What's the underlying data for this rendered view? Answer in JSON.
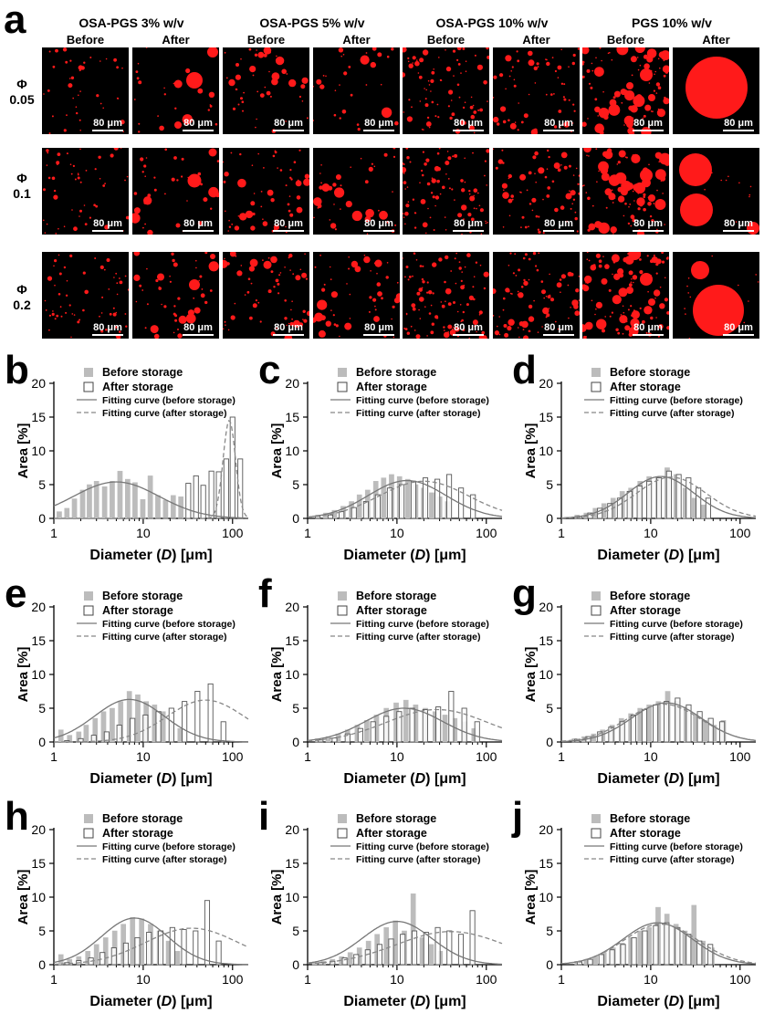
{
  "panel_a": {
    "label": "a",
    "groups": [
      "OSA-PGS 3% w/v",
      "OSA-PGS 5% w/v",
      "OSA-PGS 10% w/v",
      "PGS 10% w/v"
    ],
    "subheaders": [
      "Before",
      "After"
    ],
    "rows": [
      {
        "symbol": "Φ",
        "value": "0.05"
      },
      {
        "symbol": "Φ",
        "value": "0.1"
      },
      {
        "symbol": "Φ",
        "value": "0.2"
      }
    ],
    "scale_bar": "80 μm",
    "colors": {
      "droplet": "#ff1a1a",
      "background": "#000000"
    }
  },
  "histogram_text": {
    "legend": [
      "Before storage",
      "After storage",
      "Fitting curve (before storage)",
      "Fitting curve (after storage)"
    ],
    "xlabel_prefix": "Diameter (",
    "xlabel_var": "D",
    "xlabel_suffix": ") [μm]",
    "ylabel": "Area [%]",
    "yticks": [
      "0",
      "5",
      "10",
      "15",
      "20"
    ],
    "xticks": [
      "1",
      "10",
      "100"
    ]
  },
  "chart_data": [
    {
      "panel": "b",
      "type": "bar",
      "xscale": "log",
      "xlim": [
        1,
        150
      ],
      "ylim": [
        0,
        20
      ],
      "xlabel": "Diameter (D) [μm]",
      "ylabel": "Area [%]",
      "series": [
        {
          "name": "Before storage",
          "x": [
            1.15,
            1.4,
            1.7,
            2.1,
            2.5,
            3.0,
            3.7,
            4.5,
            5.5,
            6.7,
            8.1,
            9.9,
            12,
            14.6,
            17.8,
            21.7,
            26.4
          ],
          "values": [
            1.0,
            1.5,
            2.9,
            4.2,
            5.0,
            5.5,
            4.7,
            5.5,
            7.0,
            5.8,
            5.3,
            2.8,
            6.3,
            3.4,
            2.7,
            3.4,
            3.2
          ]
        },
        {
          "name": "After storage",
          "x": [
            32,
            39,
            47,
            58,
            70,
            85,
            100,
            122
          ],
          "values": [
            5.2,
            6.3,
            4.9,
            7.0,
            6.9,
            8.8,
            15.0,
            8.8
          ]
        }
      ],
      "fits": [
        {
          "name": "Fitting curve (before storage)",
          "peak_x": 5,
          "peak_y": 5.4,
          "sigma": 1.1
        },
        {
          "name": "Fitting curve (after storage)",
          "peak_x": 92,
          "peak_y": 14.5,
          "sigma": 0.16
        }
      ]
    },
    {
      "panel": "c",
      "type": "bar",
      "xscale": "log",
      "xlim": [
        1,
        150
      ],
      "ylim": [
        0,
        20
      ],
      "xlabel": "Diameter (D) [μm]",
      "ylabel": "Area [%]",
      "series": [
        {
          "name": "Before storage",
          "x": [
            1.3,
            1.6,
            2.0,
            2.5,
            3.1,
            3.8,
            4.7,
            5.8,
            7.1,
            8.7,
            10.7,
            13.2,
            16.2,
            19.9,
            24.5,
            30.1,
            37
          ],
          "values": [
            0.5,
            0.8,
            1.2,
            1.8,
            2.5,
            3.5,
            4.2,
            5.5,
            6.0,
            6.5,
            6.2,
            5.8,
            5.0,
            4.5,
            3.8,
            3.2,
            2.5
          ]
        },
        {
          "name": "After storage",
          "x": [
            1.3,
            1.8,
            2.4,
            3.3,
            4.5,
            6.1,
            8.3,
            11.3,
            15.3,
            20.8,
            28.3,
            38.4,
            52.2,
            71
          ],
          "values": [
            0.3,
            0.5,
            1.0,
            1.6,
            2.5,
            3.5,
            4.5,
            5.0,
            5.5,
            6.0,
            5.8,
            6.5,
            4.5,
            3.5
          ]
        }
      ],
      "fits": [
        {
          "name": "Fitting curve (before storage)",
          "peak_x": 13,
          "peak_y": 5.6,
          "sigma": 1.0
        },
        {
          "name": "Fitting curve (after storage)",
          "peak_x": 20,
          "peak_y": 5.5,
          "sigma": 1.15
        }
      ]
    },
    {
      "panel": "d",
      "type": "bar",
      "xscale": "log",
      "xlim": [
        1,
        150
      ],
      "ylim": [
        0,
        20
      ],
      "xlabel": "Diameter (D) [μm]",
      "ylabel": "Area [%]",
      "series": [
        {
          "name": "Before storage",
          "x": [
            1.5,
            1.9,
            2.4,
            3.0,
            3.8,
            4.8,
            6.0,
            7.6,
            9.6,
            12.1,
            15.3,
            19.3,
            24.4,
            30.8,
            38.9
          ],
          "values": [
            0.5,
            0.8,
            1.5,
            2.2,
            3.0,
            4.0,
            4.5,
            5.5,
            6.2,
            6.0,
            7.5,
            6.5,
            4.5,
            3.0,
            2.0
          ]
        },
        {
          "name": "After storage",
          "x": [
            1.6,
            2.1,
            2.7,
            3.5,
            4.5,
            5.8,
            7.5,
            9.6,
            12.4,
            16,
            20.6,
            26.5,
            34.2,
            44
          ],
          "values": [
            0.3,
            0.8,
            1.5,
            2.2,
            3.0,
            4.0,
            4.8,
            5.5,
            6.0,
            7.0,
            6.5,
            6.0,
            4.5,
            3.0
          ]
        }
      ],
      "fits": [
        {
          "name": "Fitting curve (before storage)",
          "peak_x": 13,
          "peak_y": 6.2,
          "sigma": 0.85
        },
        {
          "name": "Fitting curve (after storage)",
          "peak_x": 17,
          "peak_y": 6.1,
          "sigma": 0.9
        }
      ]
    },
    {
      "panel": "e",
      "type": "bar",
      "xscale": "log",
      "xlim": [
        1,
        150
      ],
      "ylim": [
        0,
        20
      ],
      "xlabel": "Diameter (D) [μm]",
      "ylabel": "Area [%]",
      "series": [
        {
          "name": "Before storage",
          "x": [
            1.2,
            1.5,
            1.9,
            2.3,
            2.9,
            3.6,
            4.5,
            5.6,
            7.0,
            8.7,
            10.8,
            13.4,
            16.7,
            20.8,
            25.9
          ],
          "values": [
            1.8,
            1.0,
            1.5,
            2.5,
            3.5,
            4.5,
            5.0,
            6.0,
            7.5,
            7.0,
            6.0,
            5.5,
            4.5,
            3.0,
            2.0
          ]
        },
        {
          "name": "After storage",
          "x": [
            1.4,
            2.0,
            2.8,
            3.9,
            5.4,
            7.6,
            10.6,
            14.8,
            20.7,
            29,
            40.5,
            56.7,
            79
          ],
          "values": [
            0.2,
            0.5,
            1.0,
            1.5,
            2.5,
            3.5,
            4.0,
            4.5,
            5.0,
            6.0,
            7.5,
            8.6,
            3.0
          ]
        }
      ],
      "fits": [
        {
          "name": "Fitting curve (before storage)",
          "peak_x": 7,
          "peak_y": 6.3,
          "sigma": 0.9
        },
        {
          "name": "Fitting curve (after storage)",
          "peak_x": 50,
          "peak_y": 6.2,
          "sigma": 1.0
        }
      ]
    },
    {
      "panel": "f",
      "type": "bar",
      "xscale": "log",
      "xlim": [
        1,
        150
      ],
      "ylim": [
        0,
        20
      ],
      "xlabel": "Diameter (D) [μm]",
      "ylabel": "Area [%]",
      "series": [
        {
          "name": "Before storage",
          "x": [
            1.3,
            1.7,
            2.2,
            2.8,
            3.6,
            4.6,
            5.9,
            7.6,
            9.8,
            12.6,
            16.2,
            20.8,
            26.8,
            34.5,
            44.4,
            57,
            73
          ],
          "values": [
            0.5,
            0.8,
            1.2,
            1.8,
            2.5,
            3.2,
            4.0,
            5.0,
            5.8,
            6.2,
            5.5,
            5.0,
            4.5,
            4.0,
            3.5,
            3.0,
            2.0
          ]
        },
        {
          "name": "After storage",
          "x": [
            1.4,
            2.0,
            2.8,
            3.9,
            5.4,
            7.6,
            10.6,
            14.8,
            20.7,
            29,
            40.5,
            56.7,
            79
          ],
          "values": [
            0.3,
            0.6,
            1.2,
            2.0,
            3.0,
            3.8,
            4.5,
            5.0,
            4.8,
            5.2,
            7.5,
            5.0,
            3.0
          ]
        }
      ],
      "fits": [
        {
          "name": "Fitting curve (before storage)",
          "peak_x": 12,
          "peak_y": 5.0,
          "sigma": 1.0
        },
        {
          "name": "Fitting curve (after storage)",
          "peak_x": 28,
          "peak_y": 4.8,
          "sigma": 1.3
        }
      ]
    },
    {
      "panel": "g",
      "type": "bar",
      "xscale": "log",
      "xlim": [
        1,
        150
      ],
      "ylim": [
        0,
        20
      ],
      "xlabel": "Diameter (D) [μm]",
      "ylabel": "Area [%]",
      "series": [
        {
          "name": "Before storage",
          "x": [
            1.4,
            1.8,
            2.3,
            2.9,
            3.7,
            4.7,
            6.0,
            7.6,
            9.6,
            12.2,
            15.5,
            19.7,
            25,
            31.8,
            40.4,
            51.3,
            65
          ],
          "values": [
            0.5,
            0.8,
            1.2,
            1.8,
            2.5,
            3.5,
            4.2,
            5.0,
            5.5,
            6.0,
            7.5,
            6.0,
            5.2,
            4.0,
            3.2,
            2.5,
            3.2
          ]
        },
        {
          "name": "After storage",
          "x": [
            1.5,
            2.0,
            2.7,
            3.6,
            4.8,
            6.4,
            8.5,
            11.3,
            15,
            20,
            26.6,
            35.4,
            47,
            63
          ],
          "values": [
            0.4,
            0.8,
            1.5,
            2.2,
            3.0,
            4.0,
            4.8,
            5.5,
            6.0,
            6.5,
            5.5,
            4.5,
            3.5,
            3.0
          ]
        }
      ],
      "fits": [
        {
          "name": "Fitting curve (before storage)",
          "peak_x": 15,
          "peak_y": 5.8,
          "sigma": 0.9
        },
        {
          "name": "Fitting curve (after storage)",
          "peak_x": 14,
          "peak_y": 5.6,
          "sigma": 0.95
        }
      ]
    },
    {
      "panel": "h",
      "type": "bar",
      "xscale": "log",
      "xlim": [
        1,
        150
      ],
      "ylim": [
        0,
        20
      ],
      "xlabel": "Diameter (D) [μm]",
      "ylabel": "Area [%]",
      "series": [
        {
          "name": "Before storage",
          "x": [
            1.2,
            1.5,
            1.9,
            2.4,
            3.0,
            3.8,
            4.8,
            6.0,
            7.6,
            9.6,
            12.1,
            15.2,
            19.2,
            24.2
          ],
          "values": [
            1.5,
            0.8,
            1.2,
            2.0,
            3.0,
            4.0,
            5.0,
            6.0,
            7.0,
            6.8,
            6.0,
            5.0,
            3.5,
            2.0
          ]
        },
        {
          "name": "After storage",
          "x": [
            1.4,
            1.9,
            2.6,
            3.5,
            4.7,
            6.4,
            8.6,
            11.6,
            15.7,
            21.2,
            28.6,
            38.6,
            52,
            70
          ],
          "values": [
            0.3,
            0.6,
            1.0,
            1.8,
            2.5,
            3.2,
            4.0,
            4.8,
            5.0,
            5.5,
            5.2,
            5.0,
            9.5,
            3.5
          ]
        }
      ],
      "fits": [
        {
          "name": "Fitting curve (before storage)",
          "peak_x": 8,
          "peak_y": 6.9,
          "sigma": 0.85
        },
        {
          "name": "Fitting curve (after storage)",
          "peak_x": 35,
          "peak_y": 5.4,
          "sigma": 1.2
        }
      ]
    },
    {
      "panel": "i",
      "type": "bar",
      "xscale": "log",
      "xlim": [
        1,
        150
      ],
      "ylim": [
        0,
        20
      ],
      "xlabel": "Diameter (D) [μm]",
      "ylabel": "Area [%]",
      "series": [
        {
          "name": "Before storage",
          "x": [
            1.2,
            1.5,
            1.9,
            2.4,
            3.0,
            3.8,
            4.8,
            6.0,
            7.6,
            9.6,
            12.1,
            15.2,
            19.2,
            24.2,
            30.5
          ],
          "values": [
            0.3,
            0.5,
            0.8,
            1.2,
            1.8,
            2.5,
            3.5,
            4.5,
            5.5,
            6.5,
            5.0,
            10.5,
            4.0,
            3.0,
            2.0
          ]
        },
        {
          "name": "After storage",
          "x": [
            1.4,
            1.9,
            2.6,
            3.5,
            4.7,
            6.4,
            8.6,
            11.6,
            15.7,
            21.2,
            28.6,
            38.6,
            52,
            70
          ],
          "values": [
            0.3,
            0.5,
            1.0,
            1.5,
            2.2,
            3.0,
            3.8,
            4.5,
            5.0,
            4.8,
            5.5,
            5.0,
            4.5,
            8.0
          ]
        }
      ],
      "fits": [
        {
          "name": "Fitting curve (before storage)",
          "peak_x": 10,
          "peak_y": 6.4,
          "sigma": 0.9
        },
        {
          "name": "Fitting curve (after storage)",
          "peak_x": 40,
          "peak_y": 4.9,
          "sigma": 1.4
        }
      ]
    },
    {
      "panel": "j",
      "type": "bar",
      "xscale": "log",
      "xlim": [
        1,
        150
      ],
      "ylim": [
        0,
        20
      ],
      "xlabel": "Diameter (D) [μm]",
      "ylabel": "Area [%]",
      "series": [
        {
          "name": "Before storage",
          "x": [
            1.5,
            1.9,
            2.4,
            3.0,
            3.8,
            4.8,
            6.0,
            7.6,
            9.6,
            12.1,
            15.2,
            19.2,
            24.2,
            30.5,
            38.4,
            48.4
          ],
          "values": [
            0.5,
            0.8,
            1.2,
            1.8,
            2.5,
            3.2,
            4.0,
            5.0,
            5.5,
            8.5,
            7.5,
            6.0,
            5.0,
            8.8,
            3.5,
            2.5
          ]
        },
        {
          "name": "After storage",
          "x": [
            1.6,
            2.1,
            2.8,
            3.7,
            4.9,
            6.5,
            8.6,
            11.4,
            15.1,
            20,
            26.5,
            35.1,
            46.5
          ],
          "values": [
            0.4,
            0.8,
            1.5,
            2.2,
            3.0,
            4.0,
            5.0,
            5.8,
            6.2,
            5.5,
            4.5,
            3.5,
            3.0
          ]
        }
      ],
      "fits": [
        {
          "name": "Fitting curve (before storage)",
          "peak_x": 12,
          "peak_y": 6.2,
          "sigma": 0.9
        },
        {
          "name": "Fitting curve (after storage)",
          "peak_x": 13,
          "peak_y": 6.0,
          "sigma": 0.95
        }
      ]
    }
  ]
}
